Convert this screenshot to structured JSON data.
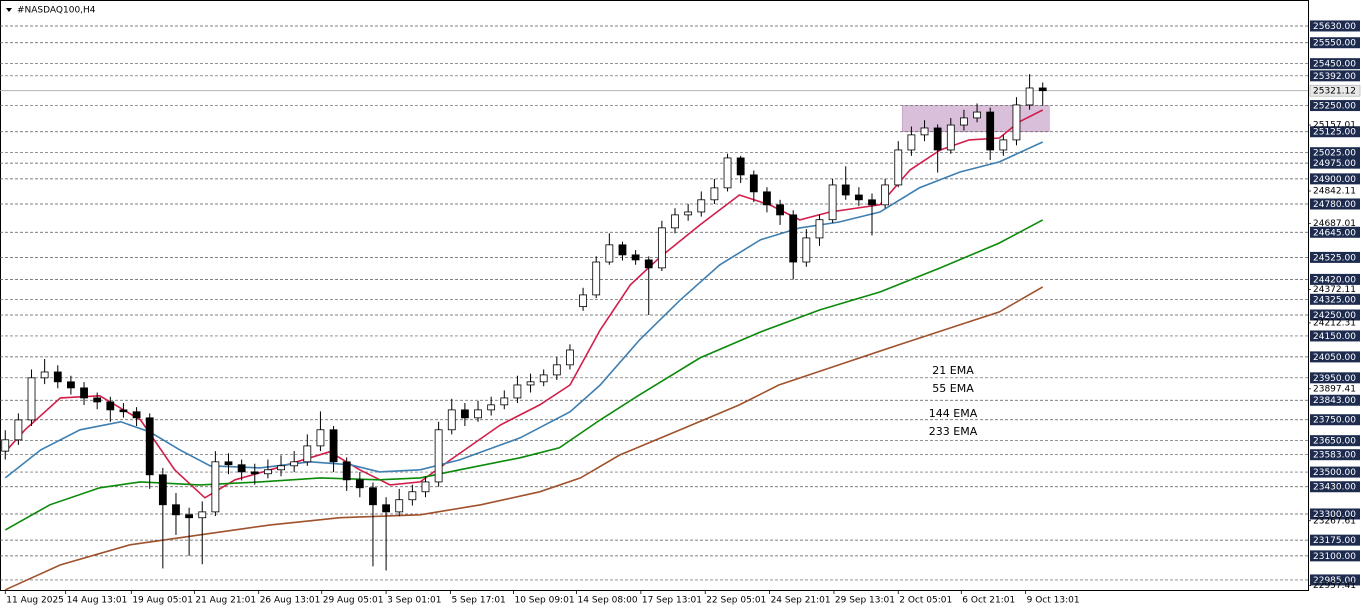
{
  "chart_data": {
    "type": "candlestick",
    "title": "#NASDAQ100,H4",
    "xlim": [
      -0.4,
      99.2
    ],
    "ylim": [
      22937,
      25754
    ],
    "up_color": "#ffffff",
    "down_color": "#000000",
    "candles": [
      [
        23600,
        23700,
        23560,
        23654
      ],
      [
        23654,
        23780,
        23630,
        23749
      ],
      [
        23749,
        23990,
        23720,
        23950
      ],
      [
        23950,
        24040,
        23920,
        23978
      ],
      [
        23978,
        24010,
        23900,
        23931
      ],
      [
        23931,
        23960,
        23870,
        23902
      ],
      [
        23902,
        23930,
        23820,
        23854
      ],
      [
        23854,
        23880,
        23800,
        23835
      ],
      [
        23835,
        23860,
        23740,
        23797
      ],
      [
        23797,
        23830,
        23760,
        23788
      ],
      [
        23788,
        23810,
        23720,
        23759
      ],
      [
        23759,
        23780,
        23420,
        23487
      ],
      [
        23487,
        23520,
        23040,
        23344
      ],
      [
        23344,
        23400,
        23200,
        23296
      ],
      [
        23296,
        23330,
        23100,
        23282
      ],
      [
        23282,
        23360,
        23060,
        23310
      ],
      [
        23310,
        23600,
        23290,
        23549
      ],
      [
        23549,
        23590,
        23490,
        23535
      ],
      [
        23535,
        23560,
        23460,
        23501
      ],
      [
        23501,
        23540,
        23440,
        23492
      ],
      [
        23492,
        23560,
        23470,
        23511
      ],
      [
        23511,
        23580,
        23480,
        23530
      ],
      [
        23530,
        23600,
        23500,
        23549
      ],
      [
        23549,
        23680,
        23530,
        23625
      ],
      [
        23625,
        23790,
        23600,
        23702
      ],
      [
        23702,
        23720,
        23500,
        23549
      ],
      [
        23549,
        23570,
        23410,
        23463
      ],
      [
        23463,
        23500,
        23380,
        23425
      ],
      [
        23425,
        23450,
        23050,
        23344
      ],
      [
        23344,
        23380,
        23030,
        23310
      ],
      [
        23310,
        23420,
        23290,
        23368
      ],
      [
        23368,
        23440,
        23340,
        23406
      ],
      [
        23406,
        23480,
        23380,
        23453
      ],
      [
        23453,
        23740,
        23430,
        23702
      ],
      [
        23702,
        23850,
        23680,
        23797
      ],
      [
        23797,
        23830,
        23720,
        23759
      ],
      [
        23759,
        23840,
        23740,
        23797
      ],
      [
        23797,
        23860,
        23770,
        23821
      ],
      [
        23821,
        23890,
        23800,
        23854
      ],
      [
        23854,
        23960,
        23830,
        23916
      ],
      [
        23916,
        23970,
        23880,
        23931
      ],
      [
        23931,
        23990,
        23910,
        23964
      ],
      [
        23964,
        24050,
        23940,
        24012
      ],
      [
        24012,
        24110,
        23990,
        24083
      ],
      [
        24290,
        24380,
        24270,
        24346
      ],
      [
        24346,
        24530,
        24330,
        24503
      ],
      [
        24503,
        24640,
        24490,
        24585
      ],
      [
        24585,
        24600,
        24510,
        24537
      ],
      [
        24537,
        24560,
        24490,
        24513
      ],
      [
        24513,
        24530,
        24250,
        24475
      ],
      [
        24475,
        24700,
        24460,
        24666
      ],
      [
        24666,
        24760,
        24640,
        24728
      ],
      [
        24728,
        24780,
        24700,
        24742
      ],
      [
        24742,
        24840,
        24720,
        24800
      ],
      [
        24800,
        24900,
        24780,
        24857
      ],
      [
        24857,
        25020,
        24840,
        25000
      ],
      [
        25000,
        25010,
        24880,
        24919
      ],
      [
        24919,
        24940,
        24790,
        24838
      ],
      [
        24838,
        24860,
        24740,
        24776
      ],
      [
        24776,
        24800,
        24680,
        24728
      ],
      [
        24728,
        24750,
        24420,
        24503
      ],
      [
        24503,
        24660,
        24480,
        24618
      ],
      [
        24618,
        24730,
        24580,
        24705
      ],
      [
        24705,
        24900,
        24690,
        24871
      ],
      [
        24871,
        24960,
        24800,
        24823
      ],
      [
        24823,
        24860,
        24770,
        24800
      ],
      [
        24800,
        24830,
        24630,
        24776
      ],
      [
        24776,
        24900,
        24760,
        24871
      ],
      [
        24871,
        25080,
        24860,
        25038
      ],
      [
        25038,
        25150,
        25010,
        25110
      ],
      [
        25110,
        25180,
        25080,
        25143
      ],
      [
        25143,
        25160,
        24930,
        25038
      ],
      [
        25038,
        25190,
        25020,
        25157
      ],
      [
        25157,
        25230,
        25130,
        25191
      ],
      [
        25191,
        25260,
        25170,
        25219
      ],
      [
        25219,
        25240,
        24990,
        25038
      ],
      [
        25038,
        25110,
        25010,
        25086
      ],
      [
        25086,
        25290,
        25060,
        25253
      ],
      [
        25253,
        25400,
        25230,
        25334
      ],
      [
        25334,
        25360,
        25250,
        25321
      ]
    ],
    "series": [
      {
        "name": "21 EMA",
        "color": "#d21e4b",
        "x": [
          0,
          1.5,
          4.2,
          7.2,
          10.3,
          12.9,
          15.2,
          17.5,
          20.2,
          24.7,
          27,
          29.3,
          31.6,
          33.9,
          37.7,
          40.7,
          43,
          45.3,
          47.6,
          49.8,
          52.9,
          55.9,
          58.2,
          60.5,
          62.8,
          66.6,
          68.9,
          71.2,
          73.4,
          75.7,
          77.2,
          79
        ],
        "values": [
          23597,
          23702,
          23854,
          23864,
          23749,
          23511,
          23377,
          23463,
          23511,
          23597,
          23511,
          23439,
          23453,
          23558,
          23725,
          23821,
          23916,
          24179,
          24394,
          24523,
          24680,
          24823,
          24776,
          24704,
          24742,
          24776,
          24943,
          25038,
          25086,
          25095,
          25172,
          25229
        ]
      },
      {
        "name": "55 EMA",
        "color": "#3f7fb0",
        "x": [
          0,
          2.7,
          5.7,
          8.8,
          11,
          13.3,
          15.6,
          19.4,
          23.2,
          26.3,
          28.5,
          31.6,
          34.6,
          39.2,
          43,
          45.3,
          48.3,
          51.4,
          54.4,
          57.5,
          60.5,
          63.5,
          66.6,
          69.6,
          72.7,
          75.7,
          79
        ],
        "values": [
          23472,
          23606,
          23702,
          23740,
          23692,
          23606,
          23530,
          23520,
          23549,
          23535,
          23501,
          23511,
          23558,
          23663,
          23788,
          23916,
          24131,
          24322,
          24489,
          24609,
          24666,
          24694,
          24742,
          24857,
          24933,
          24981,
          25076
        ]
      },
      {
        "name": "144 EMA",
        "color": "#0b8a0b",
        "x": [
          0,
          3.4,
          7.2,
          10.3,
          14.8,
          19.4,
          24,
          28.5,
          31.6,
          34.6,
          39.2,
          42.2,
          45.3,
          48.3,
          52.9,
          57.5,
          62,
          66.6,
          71.2,
          75.7,
          79
        ],
        "values": [
          23224,
          23344,
          23425,
          23453,
          23439,
          23453,
          23472,
          23463,
          23472,
          23511,
          23568,
          23616,
          23749,
          23869,
          24045,
          24169,
          24274,
          24360,
          24475,
          24594,
          24704
        ]
      },
      {
        "name": "233 EMA",
        "color": "#a0522d",
        "x": [
          0,
          4.2,
          9.5,
          14.8,
          20.2,
          25.5,
          31.6,
          36.2,
          40.7,
          43.8,
          46.8,
          51.4,
          55.9,
          58.9,
          63.5,
          68,
          72.7,
          75.7,
          79
        ],
        "values": [
          22938,
          23057,
          23153,
          23200,
          23248,
          23282,
          23296,
          23344,
          23406,
          23472,
          23582,
          23702,
          23821,
          23916,
          24012,
          24107,
          24203,
          24265,
          24384
        ]
      }
    ],
    "zone": {
      "x": [
        68.3,
        79.5
      ],
      "y": [
        25125,
        25250
      ],
      "color": "#d9bfd9"
    },
    "level_style": "dashed",
    "levels": [
      {
        "value": 25630,
        "label": "25630.00"
      },
      {
        "value": 25550,
        "label": "25550.00"
      },
      {
        "value": 25450,
        "label": "25450.00"
      },
      {
        "value": 25392,
        "label": "25392.00"
      },
      {
        "value": 25250,
        "label": "25250.00"
      },
      {
        "value": 25125,
        "label": "25125.00"
      },
      {
        "value": 25025,
        "label": "25025.00"
      },
      {
        "value": 24975,
        "label": "24975.00"
      },
      {
        "value": 24900,
        "label": "24900.00"
      },
      {
        "value": 24780,
        "label": "24780.00"
      },
      {
        "value": 24645,
        "label": "24645.00"
      },
      {
        "value": 24525,
        "label": "24525.00"
      },
      {
        "value": 24420,
        "label": "24420.00"
      },
      {
        "value": 24325,
        "label": "24325.00"
      },
      {
        "value": 24250,
        "label": "24250.00"
      },
      {
        "value": 24150,
        "label": "24150.00"
      },
      {
        "value": 24050,
        "label": "24050.00"
      },
      {
        "value": 23950,
        "label": "23950.00"
      },
      {
        "value": 23843,
        "label": "23843.00"
      },
      {
        "value": 23750,
        "label": "23750.00"
      },
      {
        "value": 23650,
        "label": "23650.00"
      },
      {
        "value": 23583,
        "label": "23583.00"
      },
      {
        "value": 23500,
        "label": "23500.00"
      },
      {
        "value": 23430,
        "label": "23430.00"
      },
      {
        "value": 23300,
        "label": "23300.00"
      },
      {
        "value": 23175,
        "label": "23175.00"
      },
      {
        "value": 23100,
        "label": "23100.00"
      },
      {
        "value": 22985,
        "label": "22985.00"
      }
    ],
    "yticks": [
      25157.01,
      24842.11,
      24687.01,
      24372.11,
      24212.31,
      23897.41,
      23267.61,
      22957.41
    ],
    "last_price": 25321.12,
    "xticks": [
      {
        "value": 0,
        "label": "11 Aug 2025"
      },
      {
        "value": 4.6,
        "label": "14 Aug 13:01"
      },
      {
        "value": 9.6,
        "label": "19 Aug 05:01"
      },
      {
        "value": 14.4,
        "label": "21 Aug 21:01"
      },
      {
        "value": 19.3,
        "label": "26 Aug 13:01"
      },
      {
        "value": 24.1,
        "label": "29 Aug 05:01"
      },
      {
        "value": 29,
        "label": "3 Sep 01:01"
      },
      {
        "value": 33.9,
        "label": "5 Sep 17:01"
      },
      {
        "value": 38.7,
        "label": "10 Sep 09:01"
      },
      {
        "value": 43.5,
        "label": "14 Sep 08:00"
      },
      {
        "value": 48.4,
        "label": "17 Sep 13:01"
      },
      {
        "value": 53.3,
        "label": "22 Sep 05:01"
      },
      {
        "value": 58.2,
        "label": "24 Sep 21:01"
      },
      {
        "value": 63.1,
        "label": "29 Sep 13:01"
      },
      {
        "value": 68,
        "label": "2 Oct 05:01"
      },
      {
        "value": 72.8,
        "label": "6 Oct 21:01"
      },
      {
        "value": 77.7,
        "label": "9 Oct 13:01"
      }
    ]
  }
}
